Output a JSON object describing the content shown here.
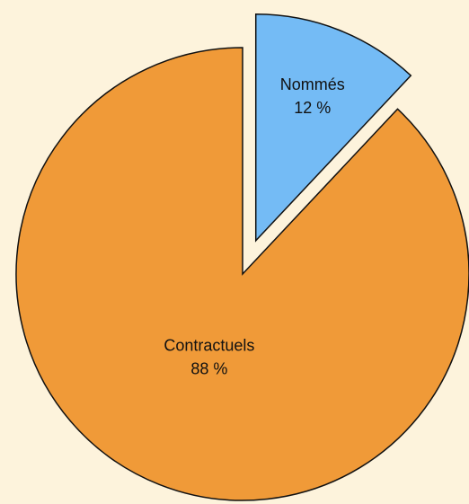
{
  "chart_data": {
    "type": "pie",
    "categories": [
      "Nommés",
      "Contractuels"
    ],
    "values": [
      12,
      88
    ],
    "value_labels": [
      "12 %",
      "88 %"
    ],
    "colors": [
      "#74bbf5",
      "#f09a38"
    ]
  }
}
